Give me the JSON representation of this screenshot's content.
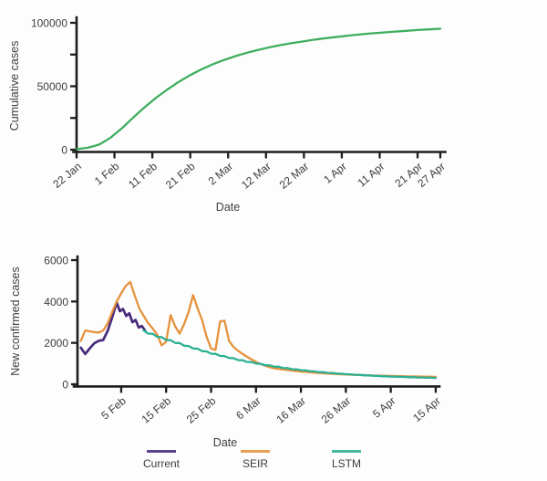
{
  "page": {
    "background": "#fdfdfd"
  },
  "chart_data": [
    {
      "type": "line",
      "name": "cumulative-cases",
      "title": "",
      "xlabel": "Date",
      "ylabel": "Cumulative cases",
      "ylim": [
        0,
        100000
      ],
      "grid": false,
      "yticks": [
        {
          "value": 0,
          "label": "0"
        },
        {
          "value": 25000,
          "label": ""
        },
        {
          "value": 50000,
          "label": "50000"
        },
        {
          "value": 75000,
          "label": ""
        },
        {
          "value": 100000,
          "label": "100000"
        }
      ],
      "xticks": [
        {
          "day": 0,
          "label": "22 Jan"
        },
        {
          "day": 10,
          "label": "1 Feb"
        },
        {
          "day": 20,
          "label": "11 Feb"
        },
        {
          "day": 30,
          "label": "21 Feb"
        },
        {
          "day": 40,
          "label": "2 Mar"
        },
        {
          "day": 50,
          "label": "12 Mar"
        },
        {
          "day": 60,
          "label": "22 Mar"
        },
        {
          "day": 70,
          "label": "1 Apr"
        },
        {
          "day": 80,
          "label": "11 Apr"
        },
        {
          "day": 90,
          "label": "21 Apr"
        },
        {
          "day": 96,
          "label": "27 Apr"
        }
      ],
      "legend": null,
      "series": [
        {
          "name": "Cumulative cases",
          "color": "#3fae5e",
          "line_width": 2.3,
          "day_start": 0,
          "day_step": 3,
          "values": [
            400,
            1500,
            4000,
            9500,
            17000,
            25500,
            33500,
            41000,
            47500,
            53500,
            58800,
            63400,
            67400,
            70800,
            73800,
            76400,
            78700,
            80700,
            82500,
            84100,
            85500,
            86800,
            88000,
            89000,
            90000,
            90900,
            91700,
            92400,
            93100,
            93700,
            94300,
            94800,
            95300
          ]
        }
      ]
    },
    {
      "type": "line",
      "name": "new-confirmed-cases",
      "title": "",
      "xlabel": "Date",
      "ylabel": "New confirmed cases",
      "ylim": [
        0,
        6000
      ],
      "grid": false,
      "yticks": [
        {
          "value": 0,
          "label": "0"
        },
        {
          "value": 2000,
          "label": "2000"
        },
        {
          "value": 4000,
          "label": "4000"
        },
        {
          "value": 6000,
          "label": "6000"
        }
      ],
      "xticks": [
        {
          "day": 9,
          "label": "5 Feb"
        },
        {
          "day": 19,
          "label": "15 Feb"
        },
        {
          "day": 29,
          "label": "25 Feb"
        },
        {
          "day": 39,
          "label": "6 Mar"
        },
        {
          "day": 49,
          "label": "16 Mar"
        },
        {
          "day": 59,
          "label": "26 Mar"
        },
        {
          "day": 69,
          "label": "5 Apr"
        },
        {
          "day": 79,
          "label": "15 Apr"
        }
      ],
      "legend": [
        "Current",
        "SEIR",
        "LSTM"
      ],
      "series": [
        {
          "name": "Current",
          "color": "#472a7c",
          "line_width": 2.7,
          "days": [
            0,
            1,
            2,
            3,
            4,
            5,
            6,
            7,
            8,
            8.7,
            9.4,
            10.1,
            10.8,
            11.5,
            12.2,
            12.9,
            13.6,
            14.3
          ],
          "values": [
            1770,
            1460,
            1740,
            1980,
            2100,
            2140,
            2590,
            3240,
            3950,
            3530,
            3640,
            3300,
            3430,
            3000,
            3110,
            2740,
            2820,
            2600
          ]
        },
        {
          "name": "SEIR",
          "color": "#e6923c",
          "line_width": 2.3,
          "day_start": 0,
          "day_step": 1,
          "values": [
            2090,
            2600,
            2560,
            2520,
            2500,
            2600,
            2950,
            3500,
            4000,
            4400,
            4750,
            4950,
            4300,
            3670,
            3310,
            2950,
            2700,
            2400,
            1880,
            2050,
            3340,
            2800,
            2450,
            2900,
            3500,
            4310,
            3670,
            3100,
            2300,
            1730,
            1660,
            3040,
            3070,
            2100,
            1800,
            1620,
            1470,
            1330,
            1200,
            1080,
            980,
            900,
            830,
            770,
            740,
            720,
            690,
            662,
            637,
            615,
            595,
            577,
            560,
            545,
            530,
            517,
            505,
            494,
            483,
            473,
            464,
            455,
            447,
            439,
            432,
            425,
            419,
            413,
            407,
            401,
            396,
            391,
            386,
            381,
            377,
            373,
            369,
            365,
            361,
            357
          ]
        },
        {
          "name": "LSTM",
          "color": "#2bb093",
          "line_width": 2.3,
          "day_start": 14,
          "day_step": 1,
          "values": [
            2600,
            2450,
            2440,
            2290,
            2280,
            2140,
            2130,
            2000,
            1990,
            1860,
            1850,
            1730,
            1720,
            1600,
            1590,
            1480,
            1470,
            1370,
            1360,
            1270,
            1260,
            1170,
            1160,
            1080,
            1070,
            1000,
            990,
            925,
            915,
            855,
            845,
            790,
            780,
            730,
            722,
            678,
            670,
            630,
            623,
            588,
            581,
            550,
            544,
            516,
            510,
            486,
            480,
            458,
            453,
            433,
            428,
            410,
            406,
            390,
            386,
            372,
            368,
            356,
            352,
            341,
            338,
            328,
            325,
            316,
            313,
            305
          ]
        }
      ]
    }
  ]
}
